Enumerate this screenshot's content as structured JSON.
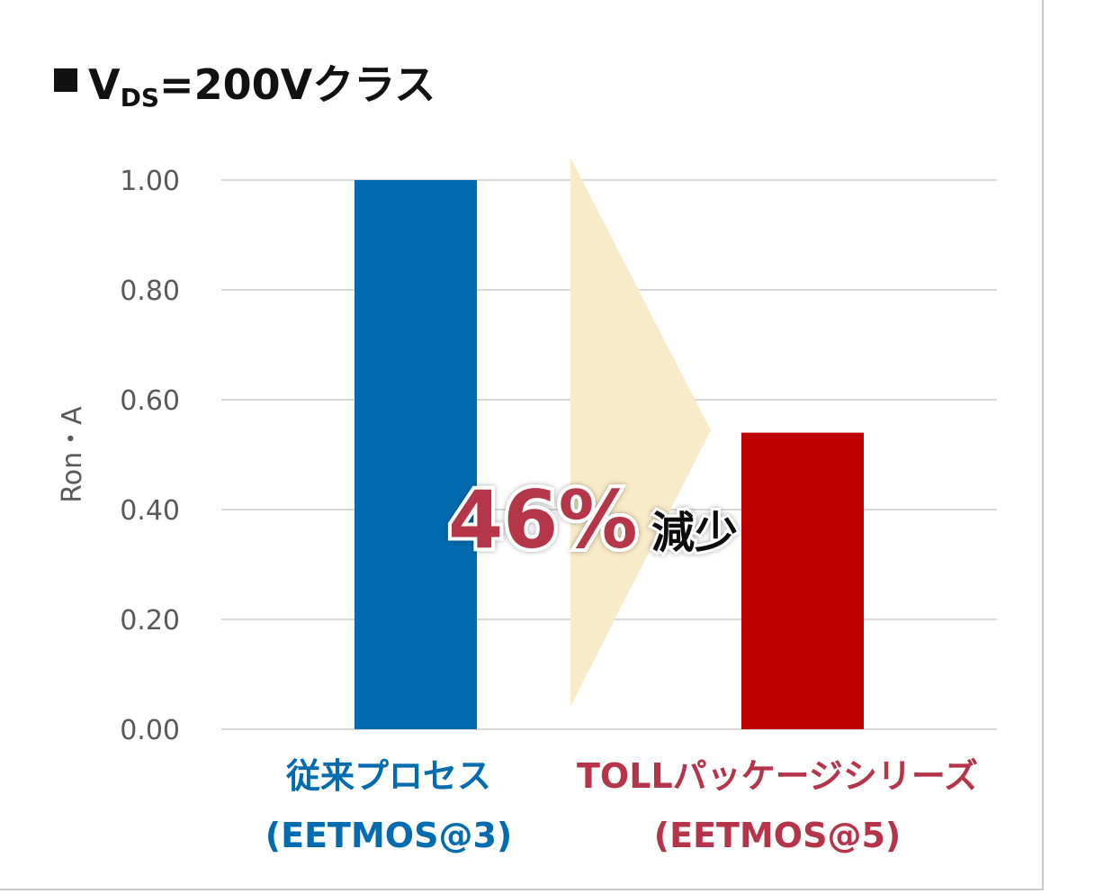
{
  "title": {
    "main": "V",
    "subscript": "DS",
    "rest": "=200Vクラス"
  },
  "annotation": {
    "percent": "46%",
    "word": "減少",
    "arrow_color": "#f8ebc9",
    "text_color": "#b5344a"
  },
  "chart_data": {
    "type": "bar",
    "categories": [
      [
        "従来プロセス",
        "(EETMOS@3)"
      ],
      [
        "TOLLパッケージシリーズ",
        "(EETMOS@5)"
      ]
    ],
    "values": [
      1.0,
      0.54
    ],
    "colors": [
      "#006bae",
      "#c00000"
    ],
    "label_colors": [
      "#006bae",
      "#b5344a"
    ],
    "ylabel": "Ron・A",
    "ylim": [
      0,
      1.0
    ],
    "yticks": [
      "0.00",
      "0.20",
      "0.40",
      "0.60",
      "0.80",
      "1.00"
    ],
    "grid": true
  }
}
